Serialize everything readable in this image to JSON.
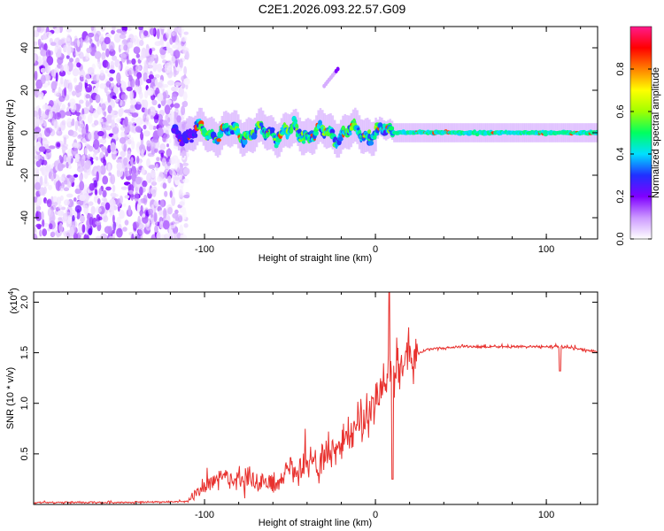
{
  "title": "C2E1.2026.093.22.57.G09",
  "chart_data": [
    {
      "type": "heatmap",
      "xlabel": "Height of straight line (km)",
      "ylabel": "Frequency (Hz)",
      "xlim": [
        -200,
        130
      ],
      "ylim": [
        -50,
        50
      ],
      "x_ticks": [
        "-100",
        "0",
        "100"
      ],
      "y_ticks": [
        "40",
        "20",
        "0",
        "-20",
        "-40"
      ],
      "colorbar": {
        "label": "Normalized spectral amplitude",
        "range": [
          0,
          1
        ],
        "ticks": [
          "0.0",
          "0.2",
          "0.4",
          "0.6",
          "0.8"
        ],
        "colors": [
          "#ffffff",
          "#cc99ff",
          "#7f00ff",
          "#2030ff",
          "#00e0ff",
          "#00ff60",
          "#a0ff00",
          "#ffff00",
          "#ff8000",
          "#ff0000",
          "#ff1a8c"
        ]
      },
      "features": {
        "noise_region_x": [
          -200,
          -110
        ],
        "signal_line_frequency": 0,
        "signal_spread_hz": 5,
        "side_track": {
          "from": [
            -30,
            22
          ],
          "to": [
            -22,
            30
          ]
        }
      }
    },
    {
      "type": "line",
      "xlabel": "Height of straight line (km)",
      "ylabel": "SNR (10 * v/v)",
      "multiplier": "(x10",
      "multiplier_exp": "4",
      "xlim": [
        -200,
        130
      ],
      "ylim": [
        0,
        2.1
      ],
      "x_ticks": [
        "-100",
        "0",
        "100"
      ],
      "y_ticks": [
        "2.0",
        "1.5",
        "1.0",
        "0.5"
      ],
      "series": [
        {
          "name": "SNR",
          "color": "#e8312e",
          "x": [
            -200,
            -150,
            -110,
            -100,
            -90,
            -80,
            -70,
            -60,
            -50,
            -40,
            -30,
            -20,
            -10,
            -5,
            0,
            5,
            10,
            20,
            30,
            50,
            70,
            90,
            110,
            130
          ],
          "values": [
            0.02,
            0.02,
            0.03,
            0.18,
            0.25,
            0.25,
            0.22,
            0.22,
            0.3,
            0.4,
            0.48,
            0.6,
            0.75,
            0.9,
            1.05,
            1.2,
            1.3,
            1.45,
            1.53,
            1.56,
            1.56,
            1.56,
            1.56,
            1.51
          ]
        }
      ]
    }
  ]
}
